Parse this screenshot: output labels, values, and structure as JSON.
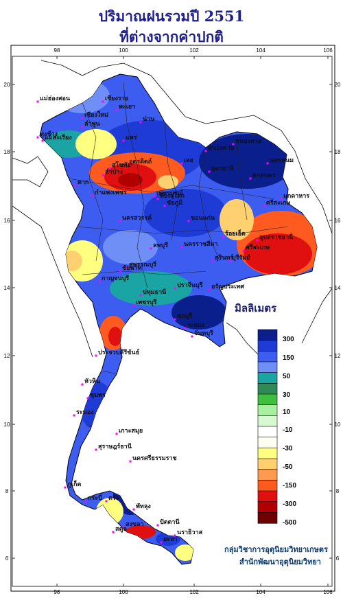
{
  "title": {
    "line1": "ปริมาณฝนรวมปี  2551",
    "line2": "ที่ต่างจากค่าปกติ"
  },
  "axes": {
    "x_ticks": [
      "98",
      "100",
      "102",
      "104",
      "106"
    ],
    "y_ticks": [
      "20",
      "18",
      "16",
      "14",
      "12",
      "10",
      "8",
      "6"
    ]
  },
  "legend": {
    "title": "มิลลิเมตร",
    "labels": [
      "300",
      "150",
      "50",
      "30",
      "10",
      "-10",
      "-30",
      "-50",
      "-150",
      "-300",
      "-500"
    ],
    "colors": [
      "#0a1e8c",
      "#1f3bd6",
      "#3d5cf0",
      "#6f8ff7",
      "#1aa4a4",
      "#2e8b57",
      "#3fbf3f",
      "#a8f0a0",
      "#d7f8d0",
      "#ffffff",
      "#fffff0",
      "#ffff80",
      "#ffd070",
      "#ff9a50",
      "#ff5a20",
      "#e01010",
      "#b00000",
      "#6e0000"
    ]
  },
  "cities": [
    "เชียงราย",
    "แม่ฮ่องสอน",
    "เชียงใหม่",
    "ลำพูน",
    "พะเยา",
    "น่าน",
    "แพร่",
    "แม่สะเรียง",
    "เลย",
    "หนองคาย",
    "นครพนม",
    "มุกดาหาร",
    "อุบลราชธานี",
    "นครราชสีมา",
    "ชัยภูมิ",
    "ขอนแก่น",
    "อุดรธานี",
    "พิษณุโลก",
    "ตาก",
    "กำแพงเพชร",
    "นครสวรรค์",
    "ลพบุรี",
    "กาญจนบุรี",
    "สุพรรณบุรี",
    "ปทุมธานี",
    "ชลบุรี",
    "ระยอง",
    "ประจวบคีรีขันธ์",
    "ชุมพร",
    "ระนอง",
    "สุราษฎร์ธานี",
    "นครศรีธรรมราช",
    "ภูเก็ต",
    "กระบี่",
    "ตรัง",
    "สงขลา",
    "ปัตตานี",
    "นราธิวาส",
    "สตูล",
    "พัทลุง",
    "เกาะสมุย",
    "ร้อยเอ็ด",
    "สกลนคร",
    "ศรีสะเกษ",
    "ปราจีนบุรี",
    "อรัญประเทศ",
    "จันทบุรี",
    "หัวหิน",
    "เพชรบูรณ์",
    "อุตรดิตถ์",
    "สุโขทัย",
    "ยะลา",
    "ทุ่งช้าง",
    "ศรีสะเกษ",
    "บุรีรัมย์",
    "สุรินทร์",
    "หนองคาย",
    "ลำปาง",
    "ชัยนาท",
    "เพชรบุรี"
  ],
  "credit": {
    "line1": "กลุ่มวิชาการอุตุนิยมวิทยาเกษตร",
    "line2": "สำนักพัฒนาอุตุนิยมวิทยา"
  }
}
